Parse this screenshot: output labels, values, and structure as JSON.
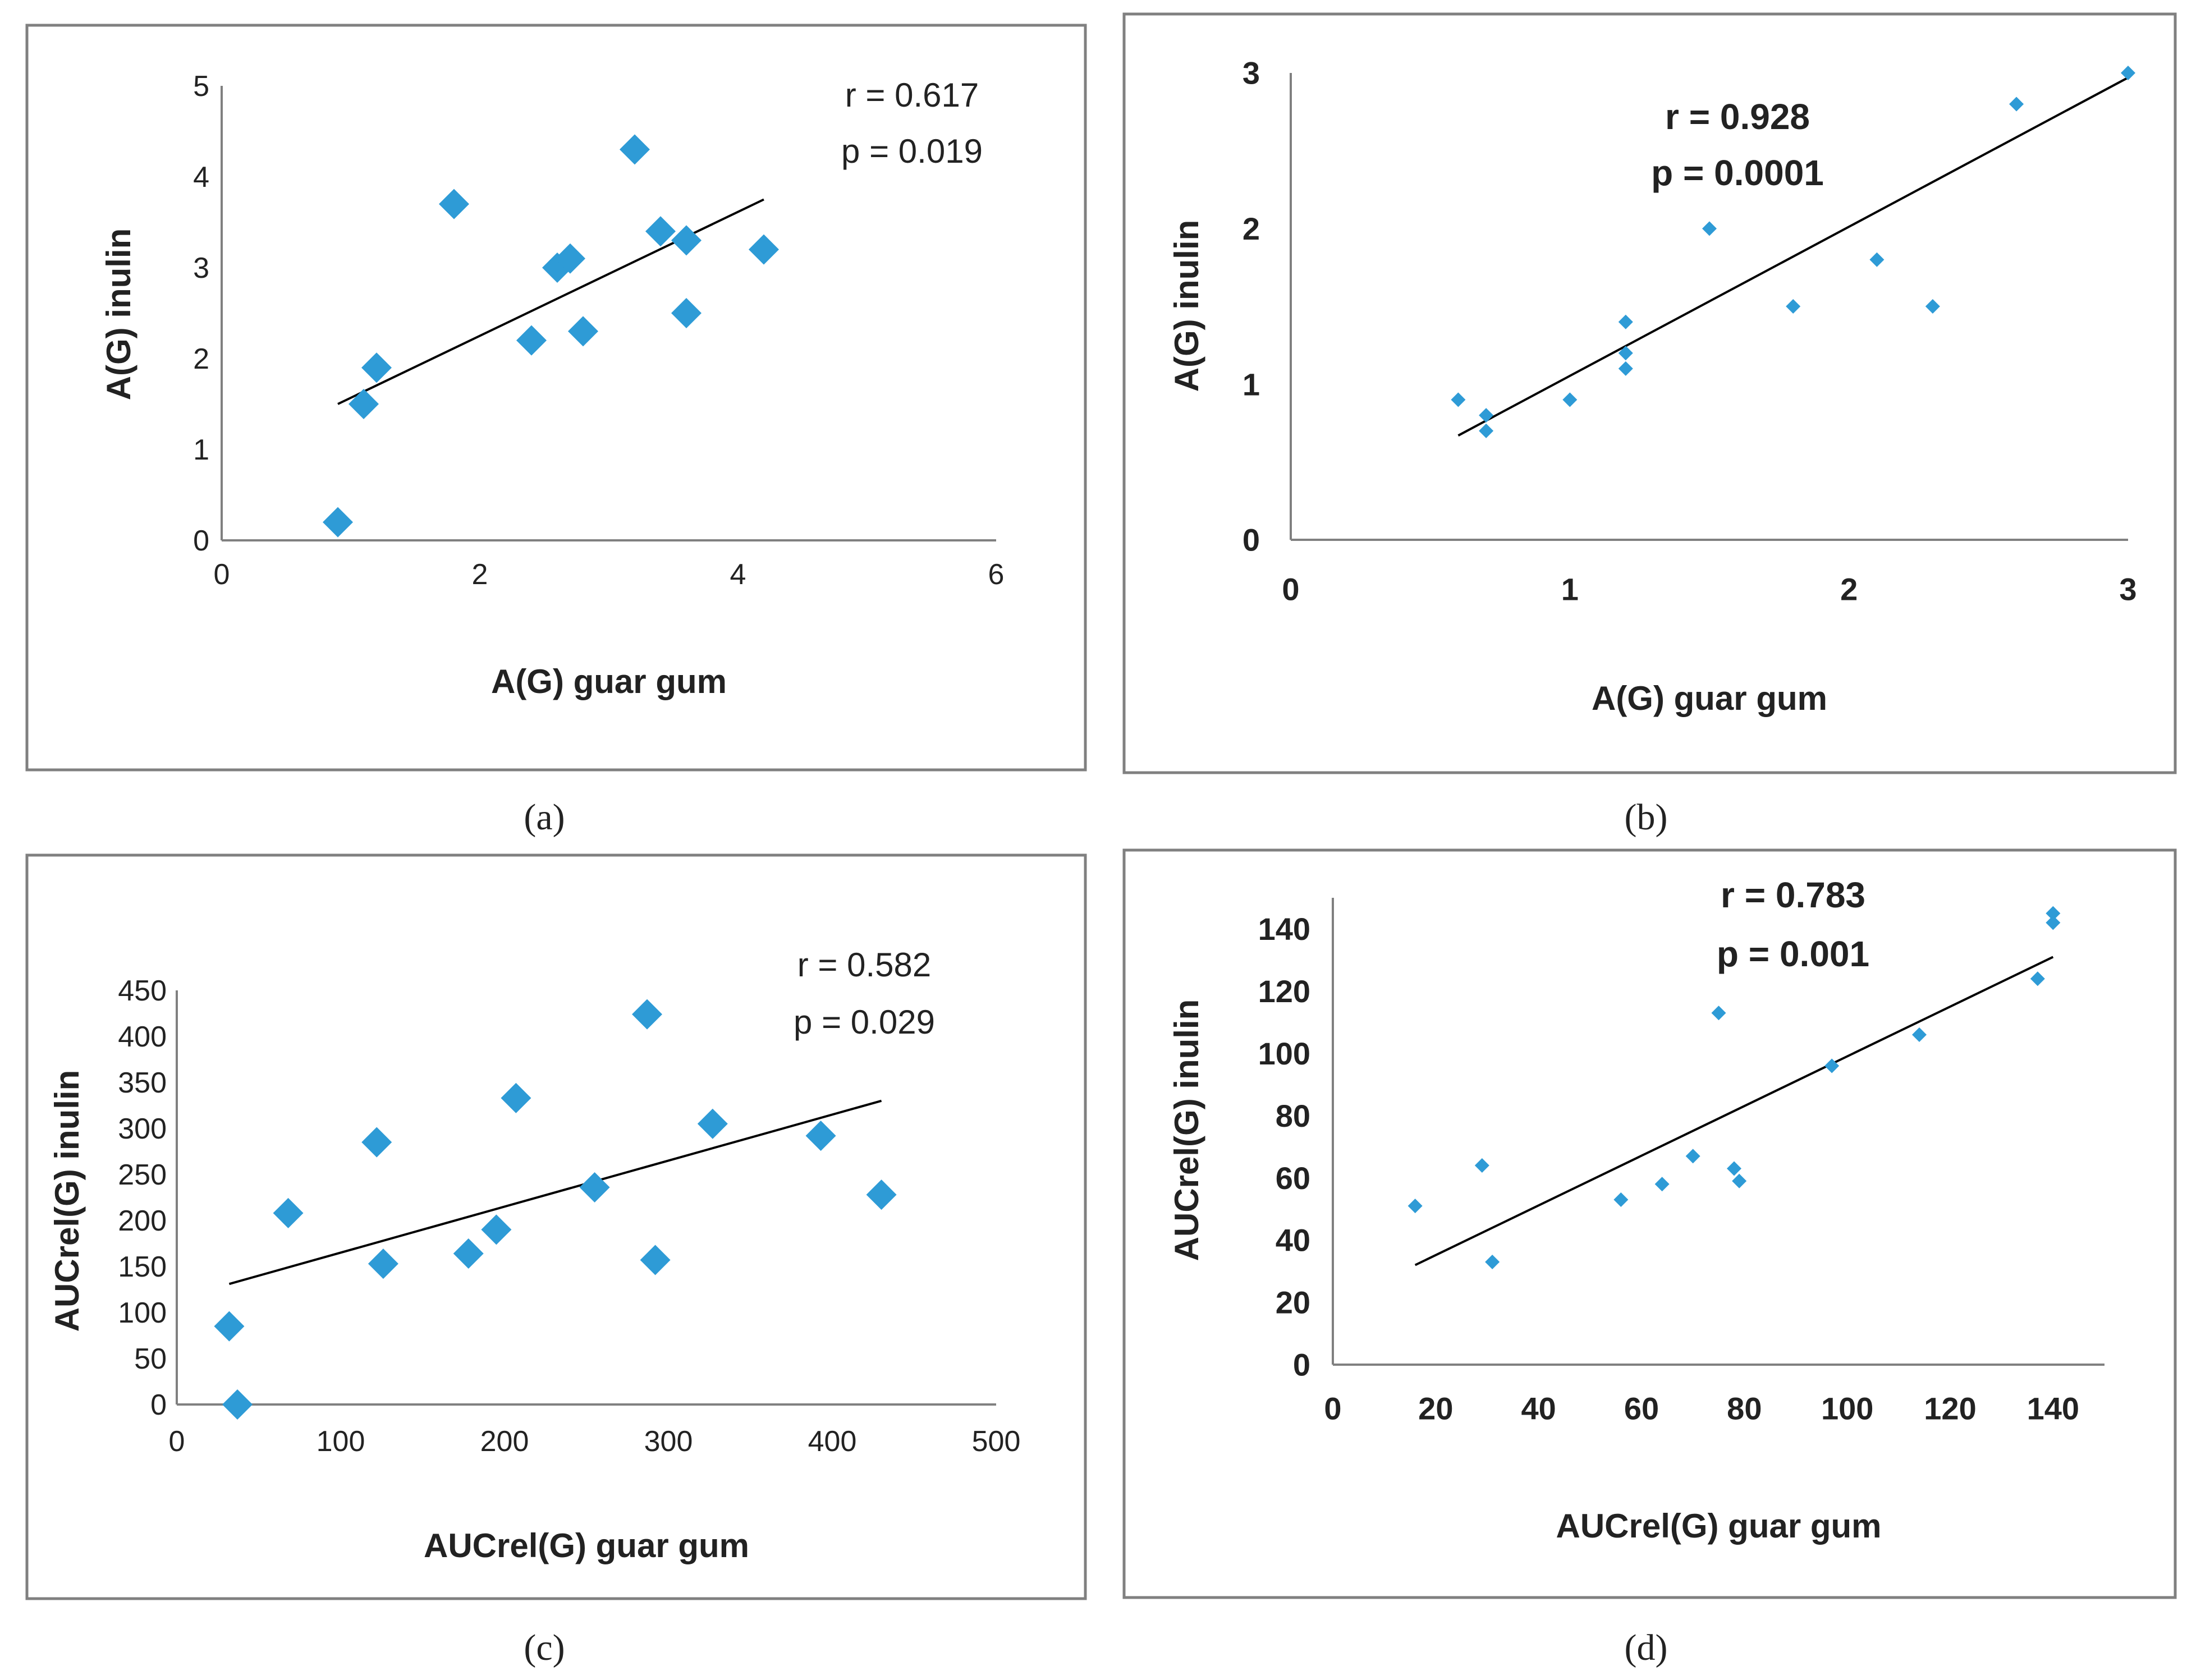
{
  "figure": {
    "captions": [
      "(a)",
      "(b)",
      "(c)",
      "(d)"
    ]
  },
  "colors": {
    "marker": "#2E9BD6",
    "trendline": "#000000",
    "axis": "#808080",
    "panel_border": "#808080",
    "text": "#222222"
  },
  "chart_data": [
    {
      "id": "a",
      "type": "scatter",
      "title": "",
      "xlabel": "A(G) guar gum",
      "ylabel": "A(G) inulin",
      "xlim": [
        0,
        6
      ],
      "ylim": [
        0,
        5
      ],
      "xticks": [
        0,
        2,
        4,
        6
      ],
      "yticks": [
        0,
        1,
        2,
        3,
        4,
        5
      ],
      "marker": "diamond-large",
      "bold_labels": false,
      "annotations": [
        "r = 0.617",
        "p = 0.019"
      ],
      "points": [
        {
          "x": 0.9,
          "y": 0.2
        },
        {
          "x": 1.1,
          "y": 1.5
        },
        {
          "x": 1.2,
          "y": 1.9
        },
        {
          "x": 1.8,
          "y": 3.7
        },
        {
          "x": 2.4,
          "y": 2.2
        },
        {
          "x": 2.6,
          "y": 3.0
        },
        {
          "x": 2.7,
          "y": 3.1
        },
        {
          "x": 2.8,
          "y": 2.3
        },
        {
          "x": 3.2,
          "y": 4.3
        },
        {
          "x": 3.4,
          "y": 3.4
        },
        {
          "x": 3.6,
          "y": 3.3
        },
        {
          "x": 3.6,
          "y": 2.5
        },
        {
          "x": 4.2,
          "y": 3.2
        }
      ],
      "trendline": [
        {
          "x": 0.9,
          "y": 1.5
        },
        {
          "x": 4.2,
          "y": 3.75
        }
      ]
    },
    {
      "id": "b",
      "type": "scatter",
      "title": "",
      "xlabel": "A(G) guar gum",
      "ylabel": "A(G)  inulin",
      "xlim": [
        0,
        3
      ],
      "ylim": [
        0,
        3
      ],
      "xticks": [
        0,
        1,
        2,
        3
      ],
      "yticks": [
        0,
        1,
        2,
        3
      ],
      "marker": "diamond-small",
      "bold_labels": true,
      "annotations": [
        "r = 0.928",
        "p = 0.0001"
      ],
      "points": [
        {
          "x": 0.6,
          "y": 0.9
        },
        {
          "x": 0.7,
          "y": 0.8
        },
        {
          "x": 0.7,
          "y": 0.7
        },
        {
          "x": 1.0,
          "y": 0.9
        },
        {
          "x": 1.2,
          "y": 1.4
        },
        {
          "x": 1.2,
          "y": 1.2
        },
        {
          "x": 1.2,
          "y": 1.1
        },
        {
          "x": 1.5,
          "y": 2.0
        },
        {
          "x": 1.8,
          "y": 1.5
        },
        {
          "x": 2.1,
          "y": 1.8
        },
        {
          "x": 2.3,
          "y": 1.5
        },
        {
          "x": 2.6,
          "y": 2.8
        },
        {
          "x": 3.0,
          "y": 3.0
        }
      ],
      "trendline": [
        {
          "x": 0.6,
          "y": 0.67
        },
        {
          "x": 3.0,
          "y": 2.97
        }
      ]
    },
    {
      "id": "c",
      "type": "scatter",
      "title": "",
      "xlabel": "AUCrel(G) guar gum",
      "ylabel": "AUCrel(G) inulin",
      "xlim": [
        0,
        500
      ],
      "ylim": [
        0,
        450
      ],
      "xticks": [
        0,
        100,
        200,
        300,
        400,
        500
      ],
      "yticks": [
        0,
        50,
        100,
        150,
        200,
        250,
        300,
        350,
        400,
        450
      ],
      "marker": "diamond-large",
      "bold_labels": false,
      "annotations": [
        "r = 0.582",
        "p = 0.029"
      ],
      "points": [
        {
          "x": 32,
          "y": 85
        },
        {
          "x": 37,
          "y": 0
        },
        {
          "x": 68,
          "y": 208
        },
        {
          "x": 122,
          "y": 285
        },
        {
          "x": 126,
          "y": 153
        },
        {
          "x": 178,
          "y": 164
        },
        {
          "x": 195,
          "y": 190
        },
        {
          "x": 207,
          "y": 333
        },
        {
          "x": 255,
          "y": 236
        },
        {
          "x": 287,
          "y": 424
        },
        {
          "x": 292,
          "y": 157
        },
        {
          "x": 327,
          "y": 305
        },
        {
          "x": 393,
          "y": 292
        },
        {
          "x": 430,
          "y": 228
        }
      ],
      "trendline": [
        {
          "x": 32,
          "y": 131
        },
        {
          "x": 430,
          "y": 330
        }
      ]
    },
    {
      "id": "d",
      "type": "scatter",
      "title": "",
      "xlabel": "AUCrel(G) guar gum",
      "ylabel": "AUCrel(G)  inulin",
      "xlim": [
        0,
        150
      ],
      "ylim": [
        0,
        150
      ],
      "xticks": [
        0,
        20,
        40,
        60,
        80,
        100,
        120,
        140
      ],
      "yticks": [
        0,
        20,
        40,
        60,
        80,
        100,
        120,
        140
      ],
      "marker": "diamond-small",
      "bold_labels": true,
      "annotations": [
        "r = 0.783",
        "p = 0.001"
      ],
      "points": [
        {
          "x": 16,
          "y": 51
        },
        {
          "x": 29,
          "y": 64
        },
        {
          "x": 31,
          "y": 33
        },
        {
          "x": 56,
          "y": 53
        },
        {
          "x": 64,
          "y": 58
        },
        {
          "x": 70,
          "y": 67
        },
        {
          "x": 75,
          "y": 113
        },
        {
          "x": 78,
          "y": 63
        },
        {
          "x": 79,
          "y": 59
        },
        {
          "x": 97,
          "y": 96
        },
        {
          "x": 114,
          "y": 106
        },
        {
          "x": 137,
          "y": 124
        },
        {
          "x": 140,
          "y": 145
        },
        {
          "x": 140,
          "y": 142
        }
      ],
      "trendline": [
        {
          "x": 16,
          "y": 32
        },
        {
          "x": 140,
          "y": 131
        }
      ]
    }
  ]
}
